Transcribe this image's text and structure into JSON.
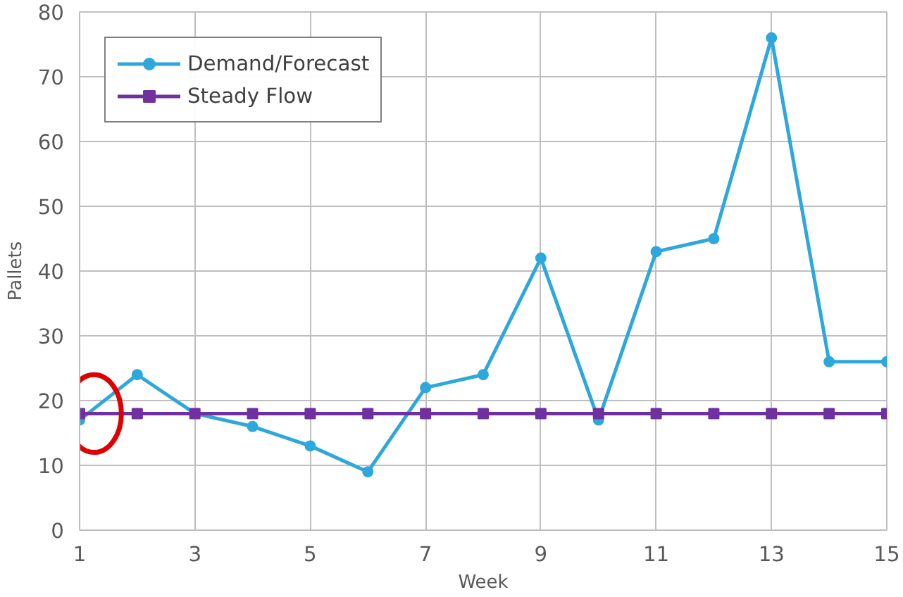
{
  "chart_data": {
    "type": "line",
    "xlabel": "Week",
    "ylabel": "Pallets",
    "x": [
      1,
      2,
      3,
      4,
      5,
      6,
      7,
      8,
      9,
      10,
      11,
      12,
      13,
      14,
      15
    ],
    "series": [
      {
        "name": "Demand/Forecast",
        "color": "#2ea8dc",
        "marker": "circle",
        "values": [
          17,
          24,
          18,
          16,
          13,
          9,
          22,
          24,
          42,
          17,
          43,
          45,
          76,
          26,
          26
        ]
      },
      {
        "name": "Steady Flow",
        "color": "#7030a0",
        "marker": "square",
        "values": [
          18,
          18,
          18,
          18,
          18,
          18,
          18,
          18,
          18,
          18,
          18,
          18,
          18,
          18,
          18
        ]
      }
    ],
    "xlim": [
      1,
      15
    ],
    "xticks": [
      1,
      3,
      5,
      7,
      9,
      11,
      13,
      15
    ],
    "ylim": [
      0,
      80
    ],
    "yticks": [
      0,
      10,
      20,
      30,
      40,
      50,
      60,
      70,
      80
    ],
    "grid": true,
    "legend": "top left"
  }
}
